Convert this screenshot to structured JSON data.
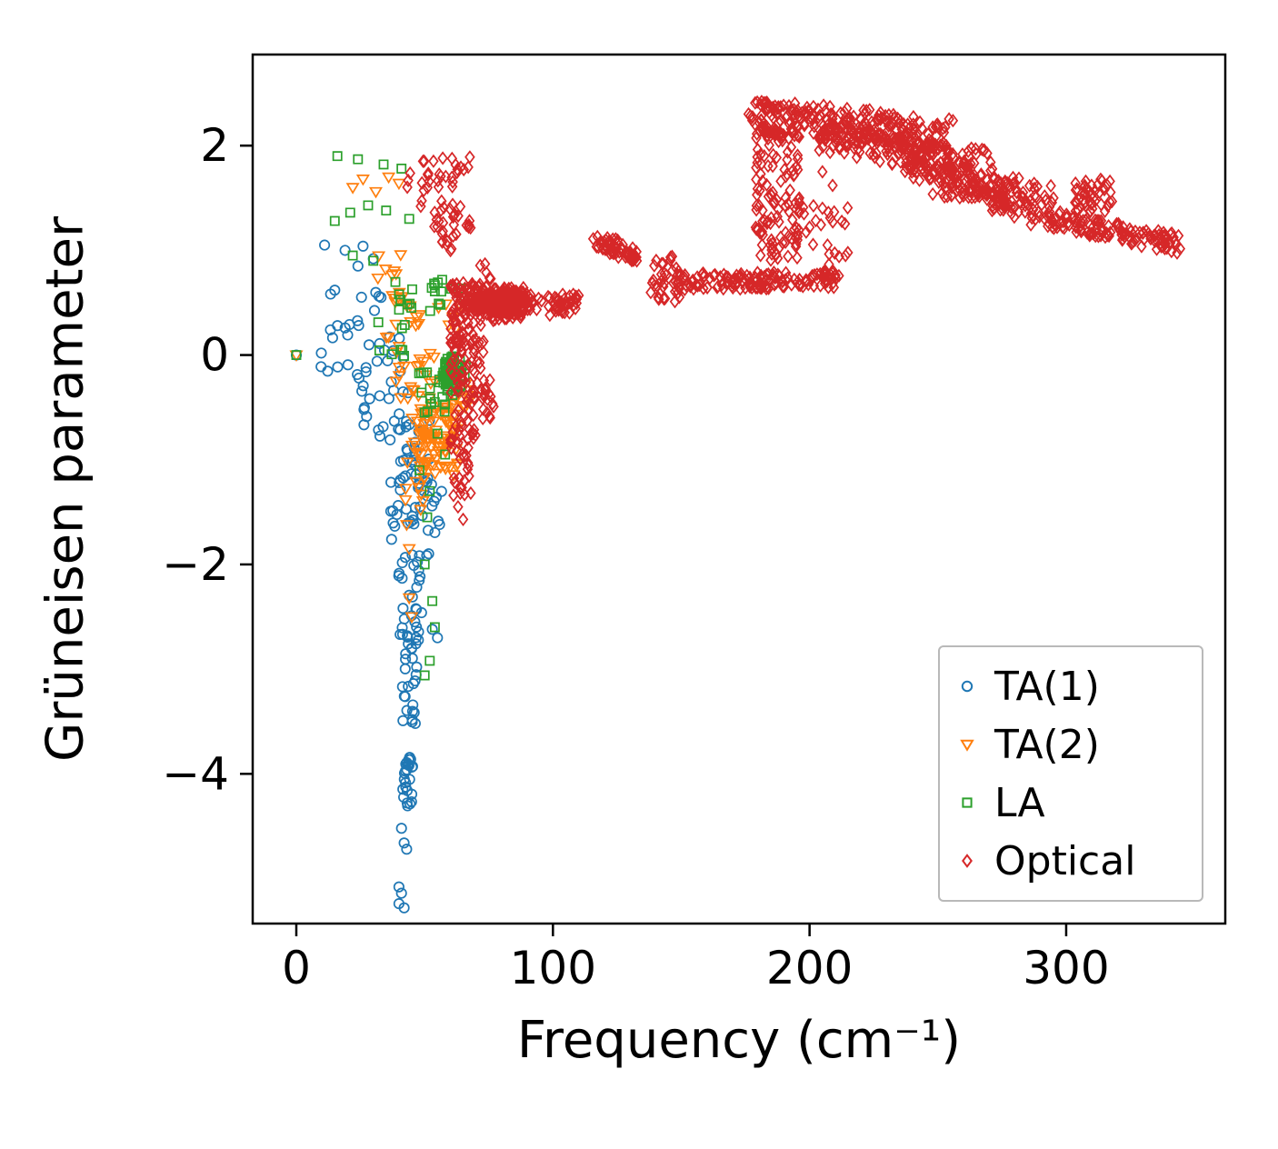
{
  "chart_data": {
    "type": "scatter",
    "title": "",
    "xlabel": "Frequency (cm⁻¹)",
    "ylabel": "Grüneisen parameter",
    "xlim": [
      -17,
      362
    ],
    "ylim": [
      -5.43,
      2.87
    ],
    "x_ticks": [
      0,
      100,
      200,
      300
    ],
    "y_ticks": [
      2,
      0,
      -2,
      -4
    ],
    "grid": false,
    "legend_position": "lower right",
    "series": [
      {
        "name": "TA(1)",
        "marker": "circle",
        "color": "#1f77b4",
        "points": [
          [
            0,
            0
          ],
          [
            11,
            1.05
          ],
          [
            19,
            1.0
          ],
          [
            26,
            1.04
          ],
          [
            30,
            0.92
          ],
          [
            24,
            0.85
          ],
          [
            15,
            0.62
          ],
          [
            33,
            0.55
          ],
          [
            53,
            -2.62
          ],
          [
            55,
            -2.7
          ],
          [
            41,
            -4.52
          ],
          [
            42,
            -4.66
          ],
          [
            43,
            -4.72
          ],
          [
            40,
            -5.08
          ],
          [
            41,
            -5.14
          ],
          [
            40,
            -5.24
          ],
          [
            42,
            -5.28
          ]
        ],
        "clusters": [
          {
            "n": 10,
            "x": [
              10,
              34
            ],
            "y": [
              0.25,
              0.6
            ]
          },
          {
            "n": 22,
            "x": [
              9,
              42
            ],
            "y": [
              -0.25,
              0.25
            ]
          },
          {
            "n": 18,
            "x": [
              24,
              44
            ],
            "y": [
              -0.8,
              -0.25
            ]
          },
          {
            "n": 55,
            "x": [
              36,
              52
            ],
            "y": [
              -1.95,
              -0.6
            ]
          },
          {
            "n": 12,
            "x": [
              47,
              57
            ],
            "y": [
              -1.7,
              -1.2
            ]
          },
          {
            "n": 30,
            "x": [
              39,
              49
            ],
            "y": [
              -2.8,
              -1.95
            ]
          },
          {
            "n": 22,
            "x": [
              41,
              47
            ],
            "y": [
              -3.55,
              -2.8
            ]
          },
          {
            "n": 12,
            "x": [
              42,
              46
            ],
            "y": [
              -4.0,
              -3.82
            ]
          },
          {
            "n": 12,
            "x": [
              41,
              45
            ],
            "y": [
              -4.38,
              -4.05
            ]
          }
        ]
      },
      {
        "name": "TA(2)",
        "marker": "triangle-down",
        "color": "#ff7f0e",
        "points": [
          [
            0,
            0
          ],
          [
            22,
            1.6
          ],
          [
            26,
            1.68
          ],
          [
            31,
            1.56
          ],
          [
            36,
            1.7
          ],
          [
            40,
            1.64
          ],
          [
            44,
            -2.32
          ],
          [
            45,
            -2.5
          ],
          [
            43,
            -1.62
          ],
          [
            44,
            -1.85
          ]
        ],
        "clusters": [
          {
            "n": 7,
            "x": [
              30,
              42
            ],
            "y": [
              0.72,
              1.0
            ]
          },
          {
            "n": 16,
            "x": [
              34,
              50
            ],
            "y": [
              0.15,
              0.6
            ]
          },
          {
            "n": 22,
            "x": [
              38,
              54
            ],
            "y": [
              -0.45,
              0.15
            ]
          },
          {
            "n": 95,
            "x": [
              44,
              63
            ],
            "y": [
              -1.15,
              -0.45
            ]
          },
          {
            "n": 10,
            "x": [
              42,
              50
            ],
            "y": [
              -1.5,
              -0.9
            ]
          },
          {
            "n": 6,
            "x": [
              55,
              65
            ],
            "y": [
              0.2,
              0.5
            ]
          },
          {
            "n": 8,
            "x": [
              60,
              68
            ],
            "y": [
              -0.5,
              -0.1
            ]
          }
        ]
      },
      {
        "name": "LA",
        "marker": "square",
        "color": "#2ca02c",
        "points": [
          [
            0,
            0
          ],
          [
            16,
            1.9
          ],
          [
            24,
            1.87
          ],
          [
            34,
            1.82
          ],
          [
            41,
            1.78
          ],
          [
            15,
            1.28
          ],
          [
            21,
            1.36
          ],
          [
            28,
            1.43
          ],
          [
            35,
            1.38
          ],
          [
            44,
            1.3
          ],
          [
            22,
            0.95
          ],
          [
            30,
            0.9
          ],
          [
            50,
            -0.55
          ],
          [
            55,
            -0.75
          ],
          [
            58,
            -0.95
          ],
          [
            48,
            -1.1
          ],
          [
            52,
            -1.3
          ],
          [
            51,
            -1.55
          ],
          [
            50,
            -2.0
          ],
          [
            53,
            -2.35
          ],
          [
            54,
            -2.6
          ],
          [
            52,
            -2.92
          ],
          [
            50,
            -3.06
          ]
        ],
        "clusters": [
          {
            "n": 8,
            "x": [
              30,
              46
            ],
            "y": [
              -0.05,
              0.35
            ]
          },
          {
            "n": 12,
            "x": [
              38,
              56
            ],
            "y": [
              0.35,
              0.7
            ]
          },
          {
            "n": 9,
            "x": [
              52,
              66
            ],
            "y": [
              0.45,
              0.72
            ]
          },
          {
            "n": 85,
            "cx": 60.5,
            "cy": -0.18,
            "sx": 3.2,
            "sy": 0.13,
            "gauss": true
          },
          {
            "n": 14,
            "x": [
              47,
              58
            ],
            "y": [
              -0.55,
              -0.15
            ]
          }
        ]
      },
      {
        "name": "Optical",
        "marker": "diamond",
        "color": "#d62728",
        "points": [
          [
            205,
            1.75
          ],
          [
            209,
            1.62
          ],
          [
            200,
            1.22
          ],
          [
            207,
            1.05
          ],
          [
            214,
            0.95
          ],
          [
            196,
            1.5
          ],
          [
            63,
            -1.45
          ],
          [
            65,
            -1.57
          ]
        ],
        "clusters": [
          {
            "n": 30,
            "x": [
              42,
              68
            ],
            "y": [
              1.55,
              1.9
            ]
          },
          {
            "n": 25,
            "x": [
              47,
              69
            ],
            "y": [
              1.18,
              1.52
            ]
          },
          {
            "n": 9,
            "x": [
              54,
              64
            ],
            "y": [
              0.95,
              1.18
            ]
          },
          {
            "n": 10,
            "x": [
              64,
              76
            ],
            "y": [
              0.6,
              0.88
            ]
          },
          {
            "n": 320,
            "cx": 80,
            "cy": 0.5,
            "sx": 8.5,
            "sy": 0.1,
            "gauss": true
          },
          {
            "n": 40,
            "seg": [
              [
                97,
                0.47
              ],
              [
                110,
                0.5
              ]
            ],
            "jx": 2,
            "jy": 0.1
          },
          {
            "n": 70,
            "x": [
              60,
              74
            ],
            "y": [
              0.3,
              0.68
            ]
          },
          {
            "n": 55,
            "x": [
              60,
              73
            ],
            "y": [
              -0.2,
              0.32
            ]
          },
          {
            "n": 45,
            "x": [
              60,
              70
            ],
            "y": [
              -0.95,
              -0.2
            ]
          },
          {
            "n": 18,
            "x": [
              61,
              68
            ],
            "y": [
              -1.35,
              -0.95
            ]
          },
          {
            "n": 22,
            "x": [
              68,
              77
            ],
            "y": [
              -0.62,
              -0.2
            ]
          },
          {
            "n": 60,
            "seg": [
              [
                117,
                1.1
              ],
              [
                132,
                0.95
              ]
            ],
            "jx": 2.5,
            "jy": 0.07
          },
          {
            "n": 40,
            "x": [
              138,
              150
            ],
            "y": [
              0.5,
              0.95
            ]
          },
          {
            "n": 150,
            "seg": [
              [
                148,
                0.7
              ],
              [
                212,
                0.72
              ]
            ],
            "jx": 2,
            "jy": 0.08
          },
          {
            "n": 130,
            "x": [
              179,
              196
            ],
            "y": [
              0.9,
              2.35
            ]
          },
          {
            "n": 25,
            "x": [
              195,
              215
            ],
            "y": [
              0.85,
              1.45
            ]
          },
          {
            "n": 240,
            "seg": [
              [
                178,
                2.28
              ],
              [
                252,
                2.12
              ]
            ],
            "jx": 5,
            "jy": 0.16
          },
          {
            "n": 150,
            "seg": [
              [
                205,
                2.1
              ],
              [
                268,
                1.8
              ]
            ],
            "jx": 7,
            "jy": 0.14
          },
          {
            "n": 170,
            "seg": [
              [
                235,
                1.9
              ],
              [
                292,
                1.45
              ]
            ],
            "jx": 7,
            "jy": 0.13
          },
          {
            "n": 70,
            "seg": [
              [
                252,
                1.62
              ],
              [
                285,
                1.38
              ]
            ],
            "jx": 5,
            "jy": 0.1
          },
          {
            "n": 130,
            "seg": [
              [
                288,
                1.32
              ],
              [
                345,
                1.05
              ]
            ],
            "jx": 4,
            "jy": 0.08
          },
          {
            "n": 45,
            "x": [
              302,
              318
            ],
            "y": [
              1.35,
              1.68
            ]
          }
        ]
      }
    ]
  }
}
